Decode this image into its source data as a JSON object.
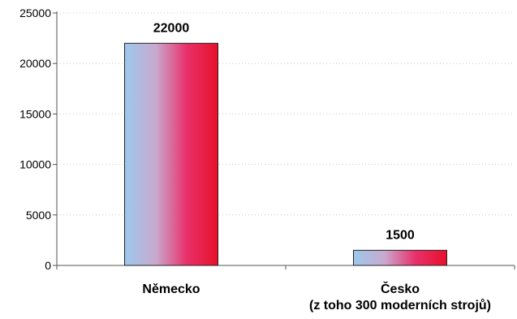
{
  "chart_data": {
    "type": "bar",
    "title": "",
    "xlabel": "",
    "ylabel": "",
    "ylim": [
      0,
      25000
    ],
    "yticks": [
      0,
      5000,
      10000,
      15000,
      20000,
      25000
    ],
    "grid": "horizontal dotted",
    "categories": [
      {
        "lines": [
          "Německo"
        ]
      },
      {
        "lines": [
          "Česko",
          "(z toho 300 moderních strojů)"
        ]
      }
    ],
    "values": [
      22000,
      1500
    ],
    "data_labels": [
      "22000",
      "1500"
    ],
    "bar_gradient": [
      "#9cc8ec",
      "#c9a9cf",
      "#e8306a",
      "#e8102a"
    ],
    "bar_stroke": "#222222",
    "grid_color": "#c8c8c8",
    "axis_color": "#555555"
  }
}
